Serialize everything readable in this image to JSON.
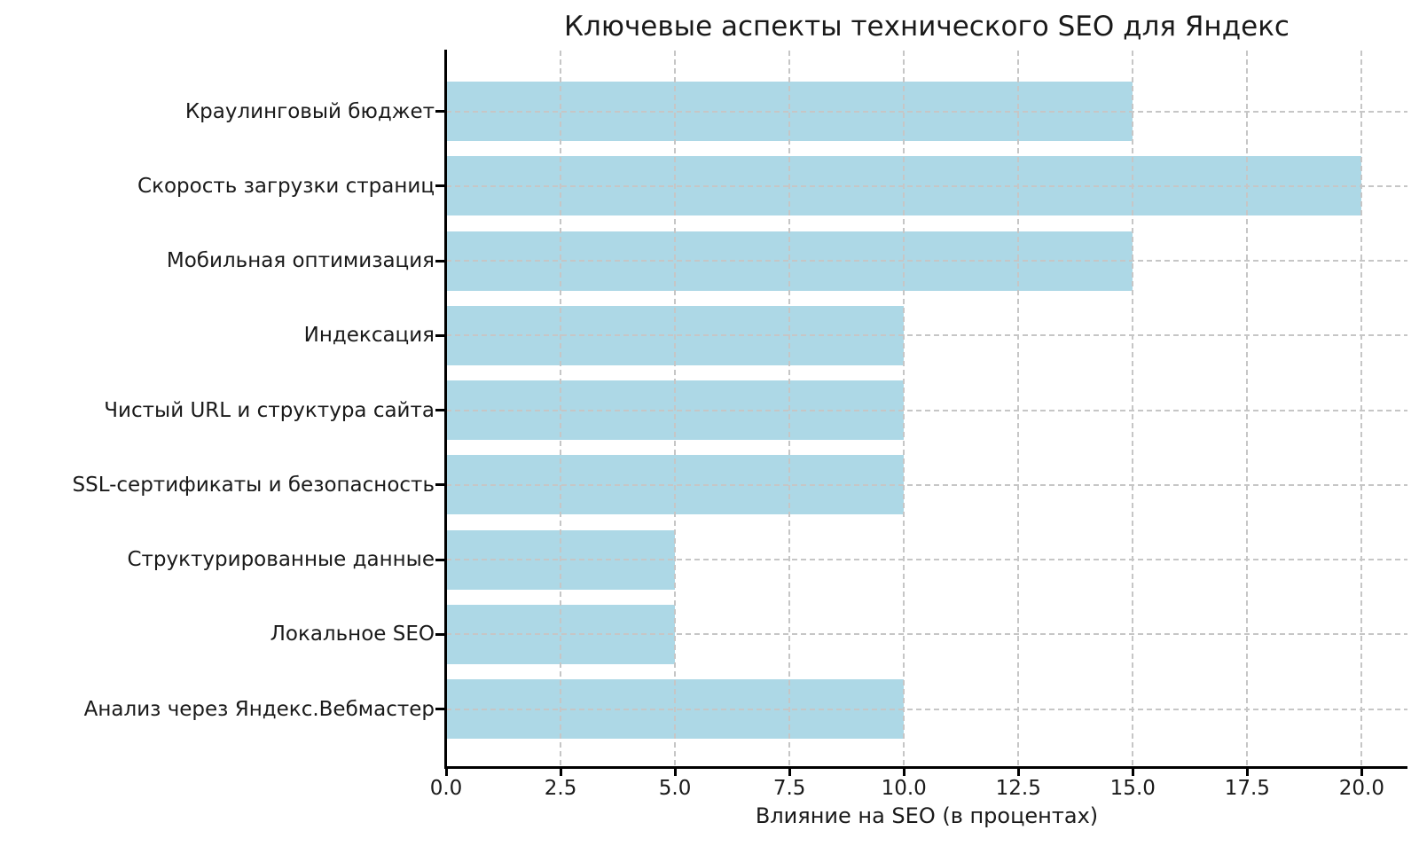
{
  "chart_data": {
    "type": "bar",
    "orientation": "horizontal",
    "title": "Ключевые аспекты технического SEO для Яндекс",
    "xlabel": "Влияние на SEO (в процентах)",
    "ylabel": "",
    "categories": [
      "Краулинговый бюджет",
      "Скорость загрузки страниц",
      "Мобильная оптимизация",
      "Индексация",
      "Чистый URL и структура сайта",
      "SSL-сертификаты и безопасность",
      "Структурированные данные",
      "Локальное SEO",
      "Анализ через Яндекс.Вебмастер"
    ],
    "values": [
      15,
      20,
      15,
      10,
      10,
      10,
      5,
      5,
      10
    ],
    "xlim": [
      0,
      21
    ],
    "xticks": [
      0,
      2.5,
      5,
      7.5,
      10,
      12.5,
      15,
      17.5,
      20
    ],
    "xtick_labels": [
      "0.0",
      "2.5",
      "5.0",
      "7.5",
      "10.0",
      "12.5",
      "15.0",
      "17.5",
      "20.0"
    ],
    "bar_color": "#ADD8E6",
    "grid": {
      "visible": true,
      "style": "dashed",
      "color": "#c6c6c6",
      "above_bars": true
    },
    "spines": {
      "left": true,
      "bottom": true,
      "top": false,
      "right": false,
      "color": "#000000"
    },
    "legend": null,
    "background": "#ffffff"
  }
}
